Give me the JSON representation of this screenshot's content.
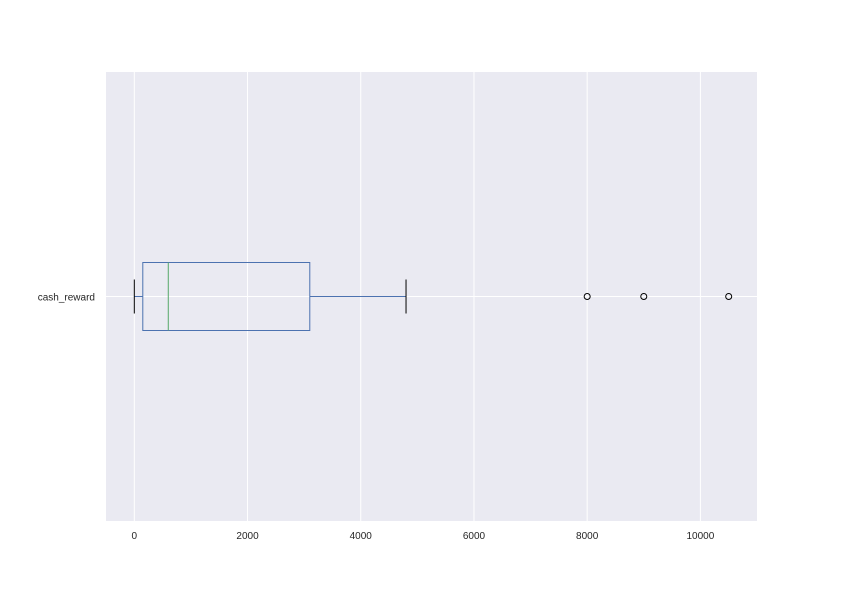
{
  "chart_data": {
    "type": "boxplot",
    "orientation": "horizontal",
    "categories": [
      "cash_reward"
    ],
    "boxes": [
      {
        "category": "cash_reward",
        "whisker_low": 0,
        "q1": 150,
        "median": 600,
        "q3": 3100,
        "whisker_high": 4800,
        "outliers": [
          8000,
          9000,
          10500
        ]
      }
    ],
    "xlim": [
      -500,
      11000
    ],
    "xticks": [
      0,
      2000,
      4000,
      6000,
      8000,
      10000
    ],
    "grid": true,
    "colors": {
      "background": "#eaeaf2",
      "grid": "#ffffff",
      "box": "#4c72b0",
      "median": "#55a868",
      "whisker_cap": "#000000",
      "outlier": "#000000"
    }
  }
}
